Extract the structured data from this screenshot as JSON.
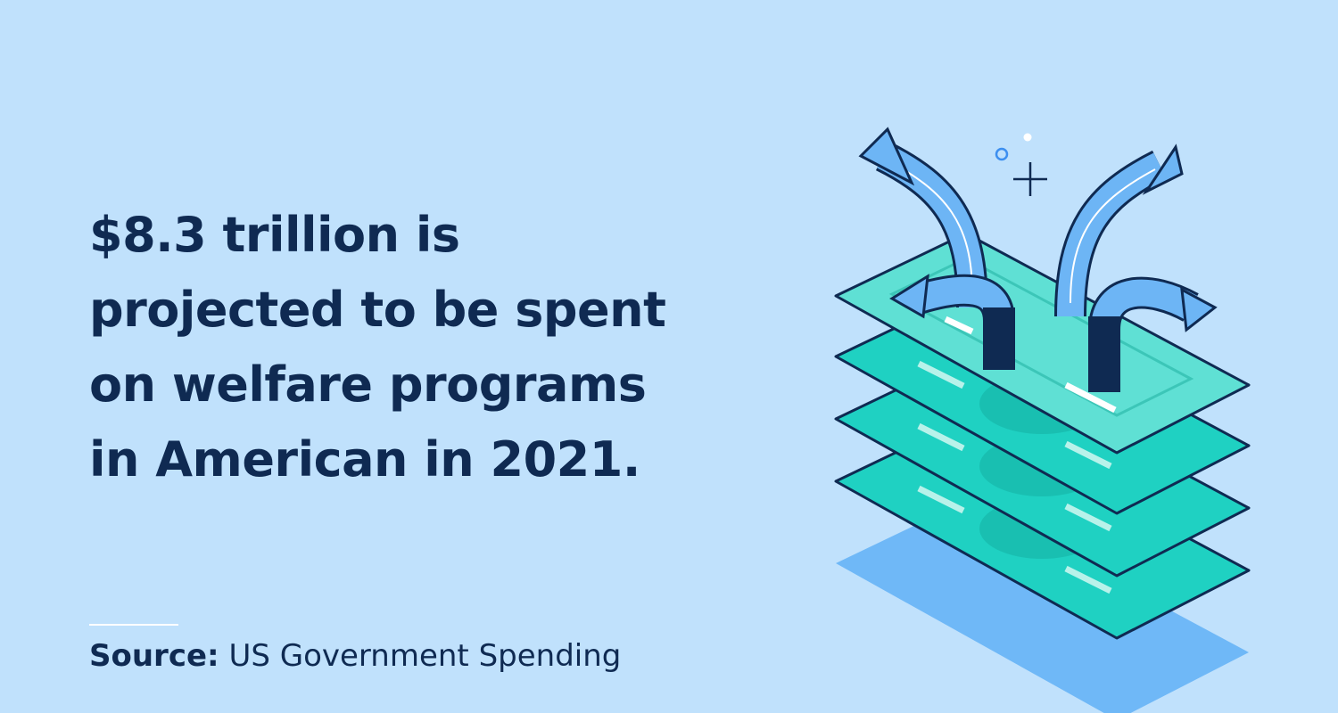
{
  "headline": {
    "lines": [
      "$8.3 trillion is",
      "projected to be spent",
      "on welfare programs",
      "in American in 2021."
    ]
  },
  "source": {
    "label": "Source:",
    "text": "US Government Spending"
  }
}
